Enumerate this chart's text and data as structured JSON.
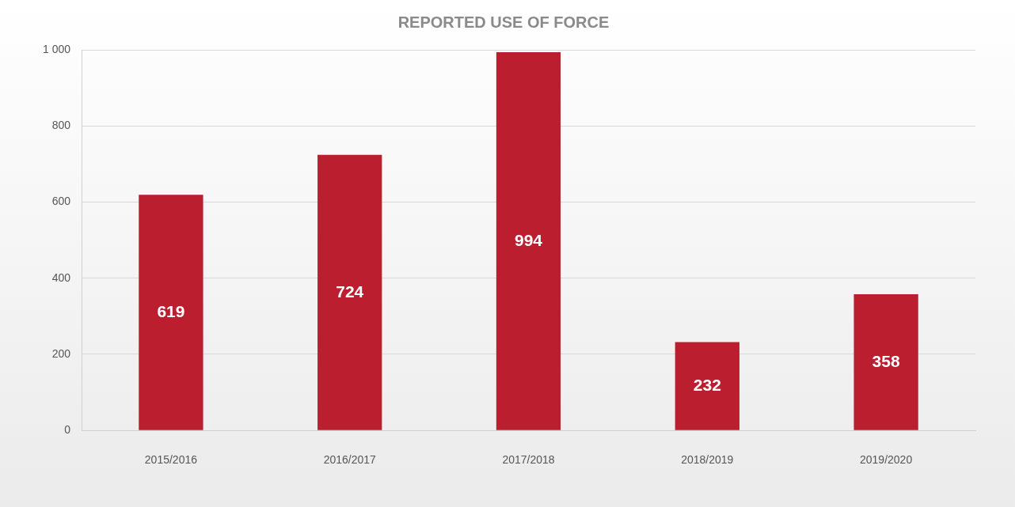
{
  "chart_data": {
    "type": "bar",
    "title": "REPORTED USE OF FORCE",
    "categories": [
      "2015/2016",
      "2016/2017",
      "2017/2018",
      "2018/2019",
      "2019/2020"
    ],
    "values": [
      619,
      724,
      994,
      232,
      358
    ],
    "color": "#bb1e2f",
    "ylim": [
      0,
      1000
    ],
    "yticks": [
      0,
      200,
      400,
      600,
      800,
      {
        "value": 1000,
        "label": "1 000"
      }
    ],
    "grid": "y",
    "data_labels": true,
    "legend": false
  }
}
